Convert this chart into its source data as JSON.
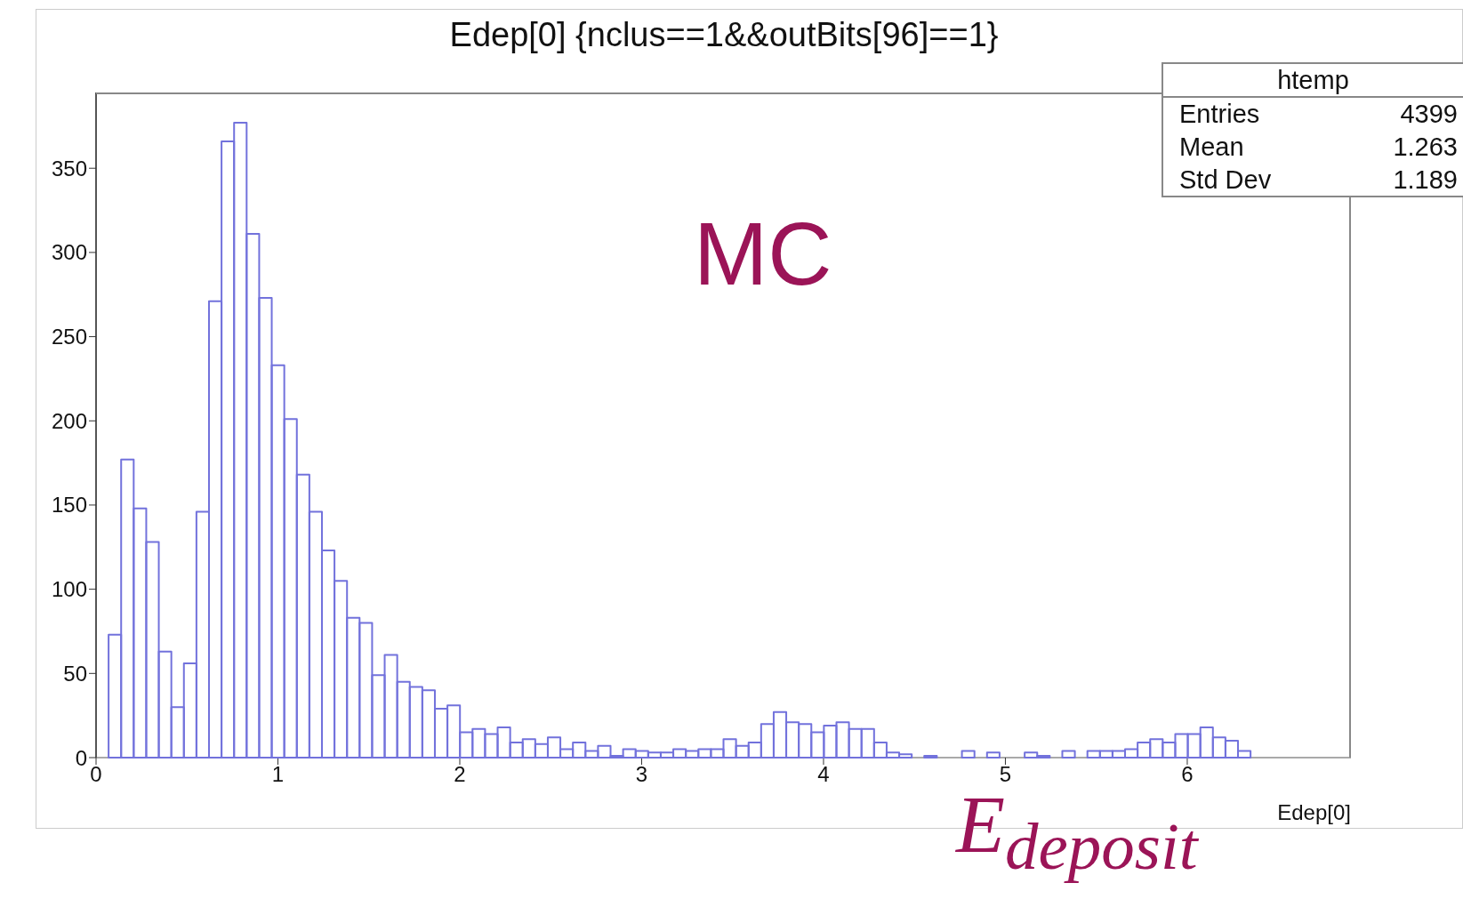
{
  "chart_data": {
    "type": "histogram",
    "title": "Edep[0] {nclus==1&&outBits[96]==1}",
    "xlabel": "Edep[0]",
    "bins": [
      0,
      0.069,
      0.138,
      0.207,
      0.276,
      0.345,
      0.414,
      0.483,
      0.552,
      0.621,
      0.69,
      0.759,
      0.828,
      0.897,
      0.966,
      1.035,
      1.104,
      1.173,
      1.242,
      1.311,
      1.38,
      1.449,
      1.518,
      1.587,
      1.656,
      1.725,
      1.794,
      1.863,
      1.932,
      2.001,
      2.07,
      2.139,
      2.208,
      2.277,
      2.346,
      2.415,
      2.484,
      2.553,
      2.622,
      2.691,
      2.76,
      2.829,
      2.898,
      2.967,
      3.036,
      3.105,
      3.174,
      3.243,
      3.312,
      3.381,
      3.45,
      3.519,
      3.588,
      3.657,
      3.726,
      3.795,
      3.864,
      3.933,
      4.002,
      4.071,
      4.14,
      4.209,
      4.278,
      4.347,
      4.416,
      4.485,
      4.554,
      4.623,
      4.692,
      4.761,
      4.83,
      4.899,
      4.968,
      5.037,
      5.106,
      5.175,
      5.244,
      5.313,
      5.382,
      5.451,
      5.52,
      5.589,
      5.658,
      5.727,
      5.796,
      5.865,
      5.934,
      6.003,
      6.072,
      6.141,
      6.21,
      6.279,
      6.348,
      6.417,
      6.486,
      6.555,
      6.624,
      6.693,
      6.762,
      6.831,
      6.9
    ],
    "values": [
      0,
      73,
      177,
      148,
      128,
      63,
      30,
      56,
      146,
      271,
      366,
      377,
      311,
      273,
      233,
      201,
      168,
      146,
      123,
      105,
      83,
      80,
      49,
      61,
      45,
      42,
      40,
      29,
      31,
      15,
      17,
      14,
      18,
      9,
      11,
      8,
      12,
      5,
      9,
      4,
      7,
      1,
      5,
      4,
      3,
      3,
      5,
      4,
      5,
      5,
      11,
      7,
      9,
      20,
      27,
      21,
      20,
      15,
      19,
      21,
      17,
      17,
      9,
      3,
      2,
      0,
      1,
      0,
      0,
      4,
      0,
      3,
      0,
      0,
      3,
      1,
      0,
      4,
      0,
      4,
      4,
      4,
      5,
      9,
      11,
      9,
      14,
      14,
      18,
      12,
      10,
      4,
      0,
      0,
      0,
      0,
      0,
      0,
      0,
      0
    ],
    "color": "#7272dc",
    "xlim": [
      0,
      6.9
    ],
    "xticks": [
      0,
      1,
      2,
      3,
      4,
      5,
      6
    ],
    "ylim": [
      0,
      395
    ],
    "yticks": [
      0,
      50,
      100,
      150,
      200,
      250,
      300,
      350
    ],
    "annotations": [
      "htemp",
      "Entries",
      "4399",
      "Mean",
      "1.263",
      "Std Dev",
      "1.189",
      "MC",
      "E$_{deposit}$"
    ]
  }
}
